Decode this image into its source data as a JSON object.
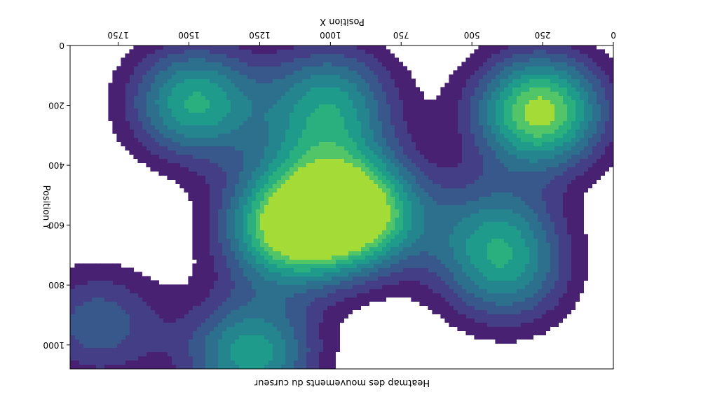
{
  "chart_data": {
    "type": "heatmap",
    "title": "Heatmap des mouvements du curseur",
    "xlabel": "Position X",
    "ylabel": "Position Y",
    "xlim": [
      0,
      1920
    ],
    "ylim": [
      1080,
      0
    ],
    "x_ticks": [
      0,
      250,
      500,
      750,
      1000,
      1250,
      1500,
      1750
    ],
    "y_ticks": [
      0,
      200,
      400,
      600,
      800,
      1000
    ],
    "x_tick_labels": [
      "0",
      "250",
      "500",
      "750",
      "1000",
      "1250",
      "1500",
      "1750"
    ],
    "y_tick_labels": [
      "0",
      "200",
      "400",
      "600",
      "800",
      "1000"
    ],
    "colormap": "viridis",
    "levels": [
      "#482173",
      "#433e85",
      "#38588c",
      "#2d708e",
      "#25858e",
      "#1e9b8a",
      "#2ab07f",
      "#52c569",
      "#a5db36"
    ],
    "grid": false,
    "rendering": "rotated 180°",
    "hotspots": [
      {
        "x": 260,
        "y": 220,
        "weight": 1.0
      },
      {
        "x": 900,
        "y": 560,
        "weight": 1.0
      },
      {
        "x": 1150,
        "y": 610,
        "weight": 0.95
      },
      {
        "x": 1480,
        "y": 190,
        "weight": 0.75
      },
      {
        "x": 1000,
        "y": 180,
        "weight": 0.6
      },
      {
        "x": 1280,
        "y": 1030,
        "weight": 0.7
      },
      {
        "x": 420,
        "y": 620,
        "weight": 0.45
      },
      {
        "x": 380,
        "y": 770,
        "weight": 0.45
      },
      {
        "x": 1820,
        "y": 930,
        "weight": 0.4
      },
      {
        "x": 1050,
        "y": 380,
        "weight": 0.3
      }
    ]
  }
}
